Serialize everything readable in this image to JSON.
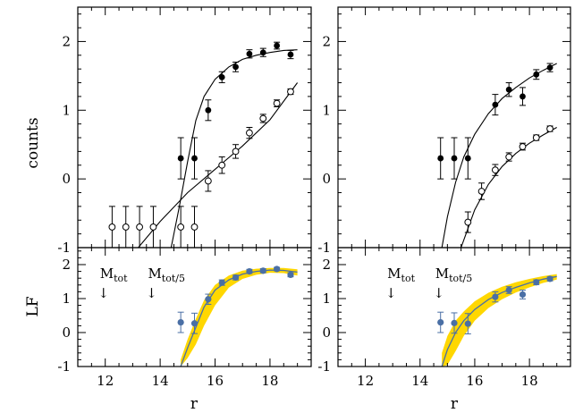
{
  "chart_data": [
    {
      "type": "scatter",
      "panel": "top-left",
      "xlabel": "",
      "ylabel": "counts",
      "xlim": [
        11,
        19.5
      ],
      "ylim": [
        -1,
        2.5
      ],
      "yticks": [
        "-1",
        "0",
        "1",
        "2"
      ],
      "series": [
        {
          "marker": "filled",
          "x": [
            14.75,
            15.25,
            15.75,
            16.25,
            16.75,
            17.25,
            17.75,
            18.25,
            18.75
          ],
          "y": [
            0.3,
            0.3,
            1.0,
            1.48,
            1.63,
            1.82,
            1.84,
            1.94,
            1.81
          ],
          "err": [
            0.3,
            0.3,
            0.15,
            0.08,
            0.07,
            0.06,
            0.06,
            0.05,
            0.06
          ]
        },
        {
          "marker": "open",
          "x": [
            12.25,
            12.75,
            13.25,
            13.75,
            14.75,
            15.25,
            15.75,
            16.25,
            16.75,
            17.25,
            17.75,
            18.25,
            18.75
          ],
          "y": [
            -0.7,
            -0.7,
            -0.7,
            -0.7,
            -0.7,
            -0.7,
            -0.03,
            0.2,
            0.4,
            0.67,
            0.88,
            1.1,
            1.27
          ],
          "err": [
            0.3,
            0.3,
            0.3,
            0.3,
            0.3,
            0.3,
            0.15,
            0.12,
            0.1,
            0.08,
            0.06,
            0.05,
            0.04
          ]
        }
      ],
      "curves": [
        {
          "x": [
            14.4,
            14.7,
            15.0,
            15.3,
            15.6,
            16.0,
            16.5,
            17.0,
            17.5,
            18.0,
            18.5,
            19.0
          ],
          "y": [
            -1.0,
            -0.4,
            0.25,
            0.85,
            1.2,
            1.45,
            1.63,
            1.74,
            1.8,
            1.84,
            1.87,
            1.88
          ]
        },
        {
          "x": [
            13.2,
            14.0,
            15.0,
            16.0,
            17.0,
            18.0,
            19.0
          ],
          "y": [
            -1.0,
            -0.62,
            -0.2,
            0.14,
            0.48,
            0.86,
            1.4
          ]
        }
      ]
    },
    {
      "type": "scatter",
      "panel": "top-right",
      "xlim": [
        11,
        19.5
      ],
      "ylim": [
        -1,
        2.5
      ],
      "yticks": [
        "-1",
        "0",
        "1",
        "2"
      ],
      "series": [
        {
          "marker": "filled",
          "x": [
            14.75,
            15.25,
            15.75,
            16.75,
            17.25,
            17.75,
            18.25,
            18.75
          ],
          "y": [
            0.3,
            0.3,
            0.3,
            1.08,
            1.3,
            1.2,
            1.52,
            1.62
          ],
          "err": [
            0.3,
            0.3,
            0.3,
            0.15,
            0.1,
            0.13,
            0.07,
            0.06
          ]
        },
        {
          "marker": "open",
          "x": [
            15.75,
            16.25,
            16.75,
            17.25,
            17.75,
            18.25,
            18.75
          ],
          "y": [
            -0.63,
            -0.18,
            0.13,
            0.32,
            0.47,
            0.6,
            0.73
          ],
          "err": [
            0.15,
            0.12,
            0.08,
            0.06,
            0.05,
            0.04,
            0.04
          ]
        }
      ],
      "curves": [
        {
          "x": [
            14.8,
            15.0,
            15.3,
            15.6,
            16.0,
            16.5,
            17.0,
            17.5,
            18.0,
            18.5,
            19.0
          ],
          "y": [
            -1.0,
            -0.55,
            -0.05,
            0.32,
            0.65,
            0.95,
            1.17,
            1.33,
            1.47,
            1.58,
            1.68
          ]
        },
        {
          "x": [
            15.5,
            16.0,
            16.5,
            17.0,
            17.5,
            18.0,
            18.5,
            19.0
          ],
          "y": [
            -1.0,
            -0.45,
            -0.08,
            0.18,
            0.37,
            0.52,
            0.64,
            0.75
          ]
        }
      ]
    },
    {
      "type": "scatter",
      "panel": "bottom-left",
      "xlabel": "r",
      "ylabel": "LF",
      "xlim": [
        11,
        19.5
      ],
      "ylim": [
        -1,
        2.5
      ],
      "xticks": [
        "12",
        "14",
        "16",
        "18"
      ],
      "yticks": [
        "-1",
        "0",
        "1",
        "2"
      ],
      "points": {
        "x": [
          14.75,
          15.25,
          15.75,
          16.25,
          16.75,
          17.25,
          17.75,
          18.25,
          18.75
        ],
        "y": [
          0.3,
          0.27,
          0.98,
          1.47,
          1.62,
          1.8,
          1.82,
          1.87,
          1.7
        ],
        "err": [
          0.3,
          0.3,
          0.15,
          0.08,
          0.07,
          0.06,
          0.06,
          0.05,
          0.06
        ]
      },
      "curve": {
        "x": [
          14.75,
          15.0,
          15.3,
          15.6,
          16.0,
          16.5,
          17.0,
          17.5,
          18.0,
          18.5,
          19.0
        ],
        "y": [
          -1.0,
          -0.45,
          0.15,
          0.75,
          1.25,
          1.55,
          1.72,
          1.8,
          1.84,
          1.83,
          1.78
        ]
      },
      "band_upper": [
        -0.8,
        -0.2,
        0.4,
        0.95,
        1.4,
        1.68,
        1.82,
        1.88,
        1.9,
        1.9,
        1.86
      ],
      "band_lower": [
        -1.0,
        -0.75,
        -0.35,
        0.2,
        0.8,
        1.32,
        1.58,
        1.7,
        1.76,
        1.75,
        1.68
      ],
      "annotations": [
        {
          "main": "M",
          "sub": "tot",
          "arrow": "↓",
          "x": 12.0,
          "y": 1.6
        },
        {
          "main": "M",
          "sub": "tot/5",
          "arrow": "↓",
          "x": 13.75,
          "y": 1.6
        }
      ]
    },
    {
      "type": "scatter",
      "panel": "bottom-right",
      "xlabel": "r",
      "xlim": [
        11,
        19.5
      ],
      "ylim": [
        -1,
        2.5
      ],
      "xticks": [
        "12",
        "14",
        "16",
        "18"
      ],
      "yticks": [
        "-1",
        "0",
        "1",
        "2"
      ],
      "points": {
        "x": [
          14.75,
          15.25,
          15.75,
          16.75,
          17.25,
          17.75,
          18.25,
          18.75
        ],
        "y": [
          0.3,
          0.28,
          0.26,
          1.05,
          1.25,
          1.12,
          1.48,
          1.58
        ],
        "err": [
          0.3,
          0.3,
          0.3,
          0.15,
          0.1,
          0.13,
          0.07,
          0.06
        ]
      },
      "curve": {
        "x": [
          14.8,
          15.0,
          15.3,
          15.6,
          16.0,
          16.5,
          17.0,
          17.5,
          18.0,
          18.5,
          19.0
        ],
        "y": [
          -1.0,
          -0.5,
          0.0,
          0.35,
          0.68,
          0.97,
          1.18,
          1.33,
          1.46,
          1.57,
          1.65
        ]
      },
      "band_upper": [
        -0.6,
        -0.1,
        0.35,
        0.62,
        0.92,
        1.17,
        1.35,
        1.48,
        1.58,
        1.66,
        1.72
      ],
      "band_lower": [
        -1.0,
        -0.95,
        -0.55,
        -0.1,
        0.35,
        0.72,
        0.98,
        1.18,
        1.33,
        1.46,
        1.56
      ],
      "annotations": [
        {
          "main": "M",
          "sub": "tot",
          "arrow": "↓",
          "x": 13.0,
          "y": 1.6
        },
        {
          "main": "M",
          "sub": "tot/5",
          "arrow": "↓",
          "x": 14.75,
          "y": 1.6
        }
      ]
    }
  ]
}
